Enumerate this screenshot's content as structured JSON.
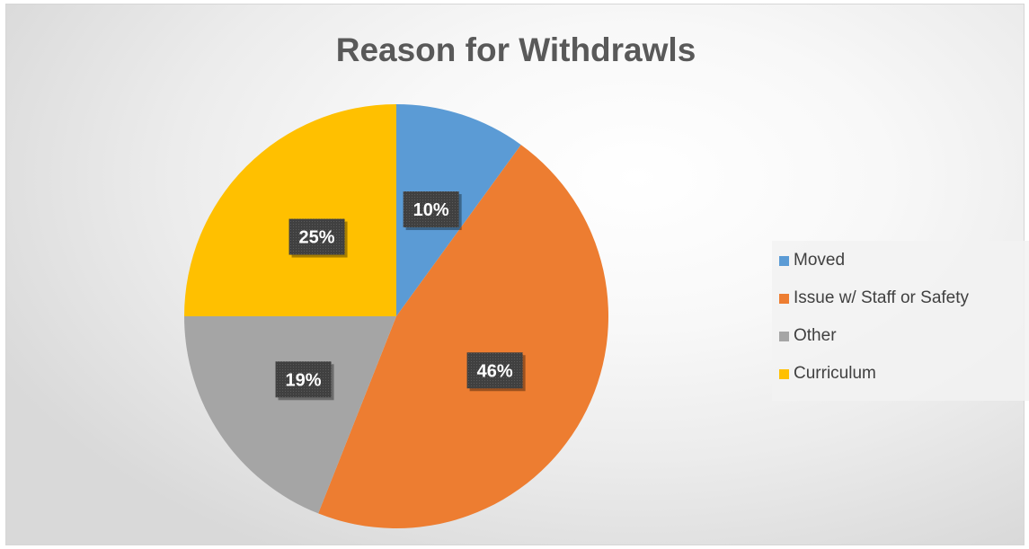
{
  "chart_data": {
    "type": "pie",
    "title": "Reason for Withdrawls",
    "categories": [
      "Moved",
      "Issue w/ Staff or Safety",
      "Other",
      "Curriculum"
    ],
    "values": [
      10,
      46,
      19,
      25
    ],
    "labels": [
      "10%",
      "46%",
      "19%",
      "25%"
    ],
    "colors": [
      "#5b9bd5",
      "#ed7d31",
      "#a5a5a5",
      "#ffc000"
    ],
    "legend_position": "right"
  }
}
